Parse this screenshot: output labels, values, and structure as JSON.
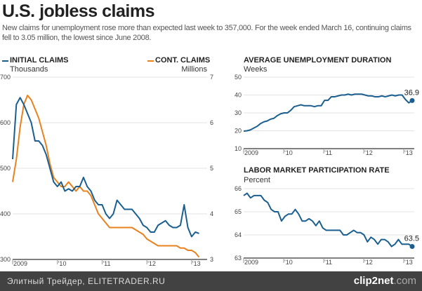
{
  "title": "U.S. jobless claims",
  "subtitle": "New claims for unemployment rose more than expected last week to 357,000. For the week ended March 16, continuing claims fell to 3.05 million, the lowest since June 2008.",
  "footer": {
    "text": "Элитный Трейдер, ELITETRADER.RU",
    "logo_main": "clip2net",
    "logo_suffix": ".com"
  },
  "chart_data": [
    {
      "type": "line",
      "title": "INITIAL CLAIMS / CONT. CLAIMS",
      "start": "2009-01",
      "x_ticks": [
        "2009",
        "'10",
        "'11",
        "'12",
        "'13"
      ],
      "series": [
        {
          "name": "INITIAL CLAIMS",
          "unit": "Thousands",
          "color": "#1a5f8f",
          "axis": "left",
          "ylim": [
            300,
            700
          ],
          "ticks": [
            300,
            400,
            500,
            600,
            700
          ],
          "values": [
            520,
            640,
            655,
            640,
            620,
            600,
            560,
            560,
            550,
            530,
            500,
            470,
            460,
            470,
            450,
            455,
            450,
            460,
            460,
            480,
            460,
            450,
            430,
            420,
            420,
            400,
            390,
            400,
            430,
            420,
            410,
            410,
            410,
            400,
            390,
            375,
            370,
            360,
            360,
            375,
            380,
            385,
            375,
            370,
            370,
            375,
            420,
            370,
            350,
            360,
            357
          ]
        },
        {
          "name": "CONT. CLAIMS",
          "unit": "Millions",
          "color": "#e8821e",
          "axis": "right",
          "ylim": [
            3,
            7
          ],
          "ticks": [
            3,
            4,
            5,
            6,
            7
          ],
          "values": [
            4.7,
            5.2,
            5.9,
            6.4,
            6.6,
            6.5,
            6.3,
            6.1,
            5.8,
            5.5,
            5.1,
            4.8,
            4.7,
            4.6,
            4.6,
            4.7,
            4.6,
            4.5,
            4.6,
            4.5,
            4.5,
            4.4,
            4.2,
            4.0,
            3.9,
            3.8,
            3.7,
            3.7,
            3.7,
            3.7,
            3.7,
            3.7,
            3.7,
            3.65,
            3.6,
            3.55,
            3.45,
            3.4,
            3.35,
            3.3,
            3.3,
            3.3,
            3.3,
            3.3,
            3.3,
            3.25,
            3.25,
            3.2,
            3.2,
            3.15,
            3.05
          ]
        }
      ]
    },
    {
      "type": "line",
      "title": "AVERAGE UNEMPLOYMENT DURATION",
      "ylabel": "Weeks",
      "color": "#1a5f8f",
      "ylim": [
        10,
        50
      ],
      "ticks": [
        10,
        20,
        30,
        40,
        50
      ],
      "x_ticks": [
        "2009",
        "'10",
        "'11",
        "'12",
        "'13"
      ],
      "last_label": "36.9",
      "values": [
        19.8,
        20,
        20.5,
        21.5,
        22.5,
        24,
        25,
        25.5,
        26.5,
        27,
        28.5,
        29.5,
        30,
        30,
        31.5,
        33.5,
        34,
        34.5,
        34,
        34,
        34,
        33.5,
        34,
        34,
        37,
        37,
        39,
        39,
        39.5,
        40,
        40,
        40.5,
        40,
        40.5,
        40.5,
        40.5,
        40,
        39.5,
        39.5,
        39,
        39,
        39.5,
        39,
        39.5,
        40,
        39.5,
        40,
        40,
        37.5,
        35.6,
        36.9
      ]
    },
    {
      "type": "line",
      "title": "LABOR MARKET PARTICIPATION RATE",
      "ylabel": "Percent",
      "color": "#1a5f8f",
      "ylim": [
        63,
        66
      ],
      "ticks": [
        63,
        64,
        65,
        66
      ],
      "x_ticks": [
        "2009",
        "'10",
        "'11",
        "'12",
        "'13"
      ],
      "last_label": "63.5",
      "values": [
        65.7,
        65.8,
        65.6,
        65.7,
        65.7,
        65.7,
        65.5,
        65.4,
        65.1,
        65.0,
        65.0,
        64.6,
        64.8,
        64.9,
        64.9,
        65.1,
        64.9,
        64.6,
        64.6,
        64.7,
        64.6,
        64.4,
        64.6,
        64.3,
        64.2,
        64.2,
        64.2,
        64.2,
        64.2,
        64.0,
        64.0,
        64.1,
        64.2,
        64.1,
        64.1,
        64.0,
        63.7,
        63.9,
        63.8,
        63.6,
        63.8,
        63.8,
        63.7,
        63.5,
        63.6,
        63.8,
        63.6,
        63.6,
        63.6,
        63.5
      ]
    }
  ]
}
